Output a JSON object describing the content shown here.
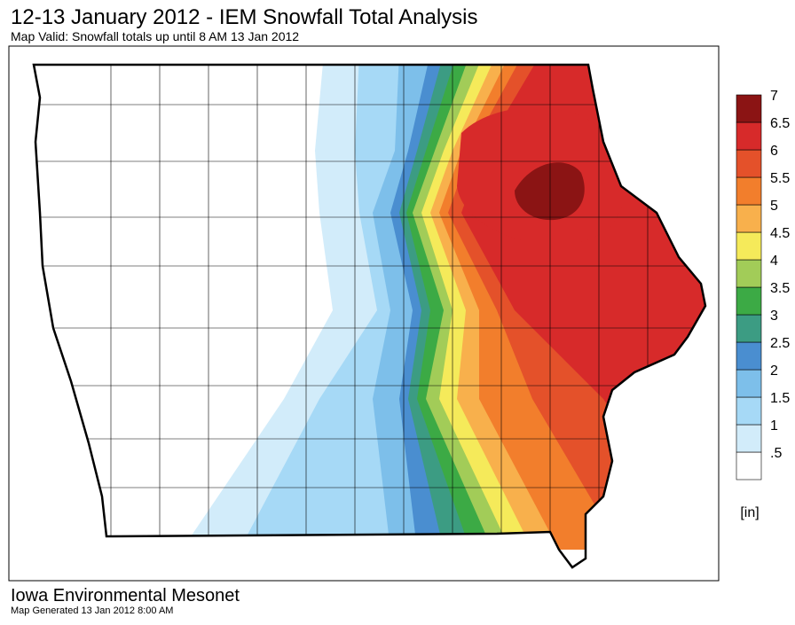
{
  "header": {
    "title": "12-13 January 2012 - IEM Snowfall Total Analysis",
    "subtitle": "Map Valid: Snowfall totals up until 8 AM 13 Jan 2012"
  },
  "legend": {
    "unit": "[in]",
    "items": [
      {
        "label": ".5",
        "color": "#ffffff"
      },
      {
        "label": "1",
        "color": "#d2ecfa"
      },
      {
        "label": "1.5",
        "color": "#a6d9f6"
      },
      {
        "label": "2",
        "color": "#7dbfea"
      },
      {
        "label": "2.5",
        "color": "#4a8ed0"
      },
      {
        "label": "3",
        "color": "#3c9c83"
      },
      {
        "label": "3.5",
        "color": "#3caa45"
      },
      {
        "label": "4",
        "color": "#a2cc58"
      },
      {
        "label": "4.5",
        "color": "#f5ea5a"
      },
      {
        "label": "5",
        "color": "#f8b04c"
      },
      {
        "label": "5.5",
        "color": "#f27e2c"
      },
      {
        "label": "6",
        "color": "#e4512a"
      },
      {
        "label": "6.5",
        "color": "#d72a2a"
      },
      {
        "label": "7",
        "color": "#8b1414"
      }
    ]
  },
  "footer": {
    "organization": "Iowa Environmental Mesonet",
    "generated": "Map Generated 13 Jan 2012 8:00 AM"
  }
}
